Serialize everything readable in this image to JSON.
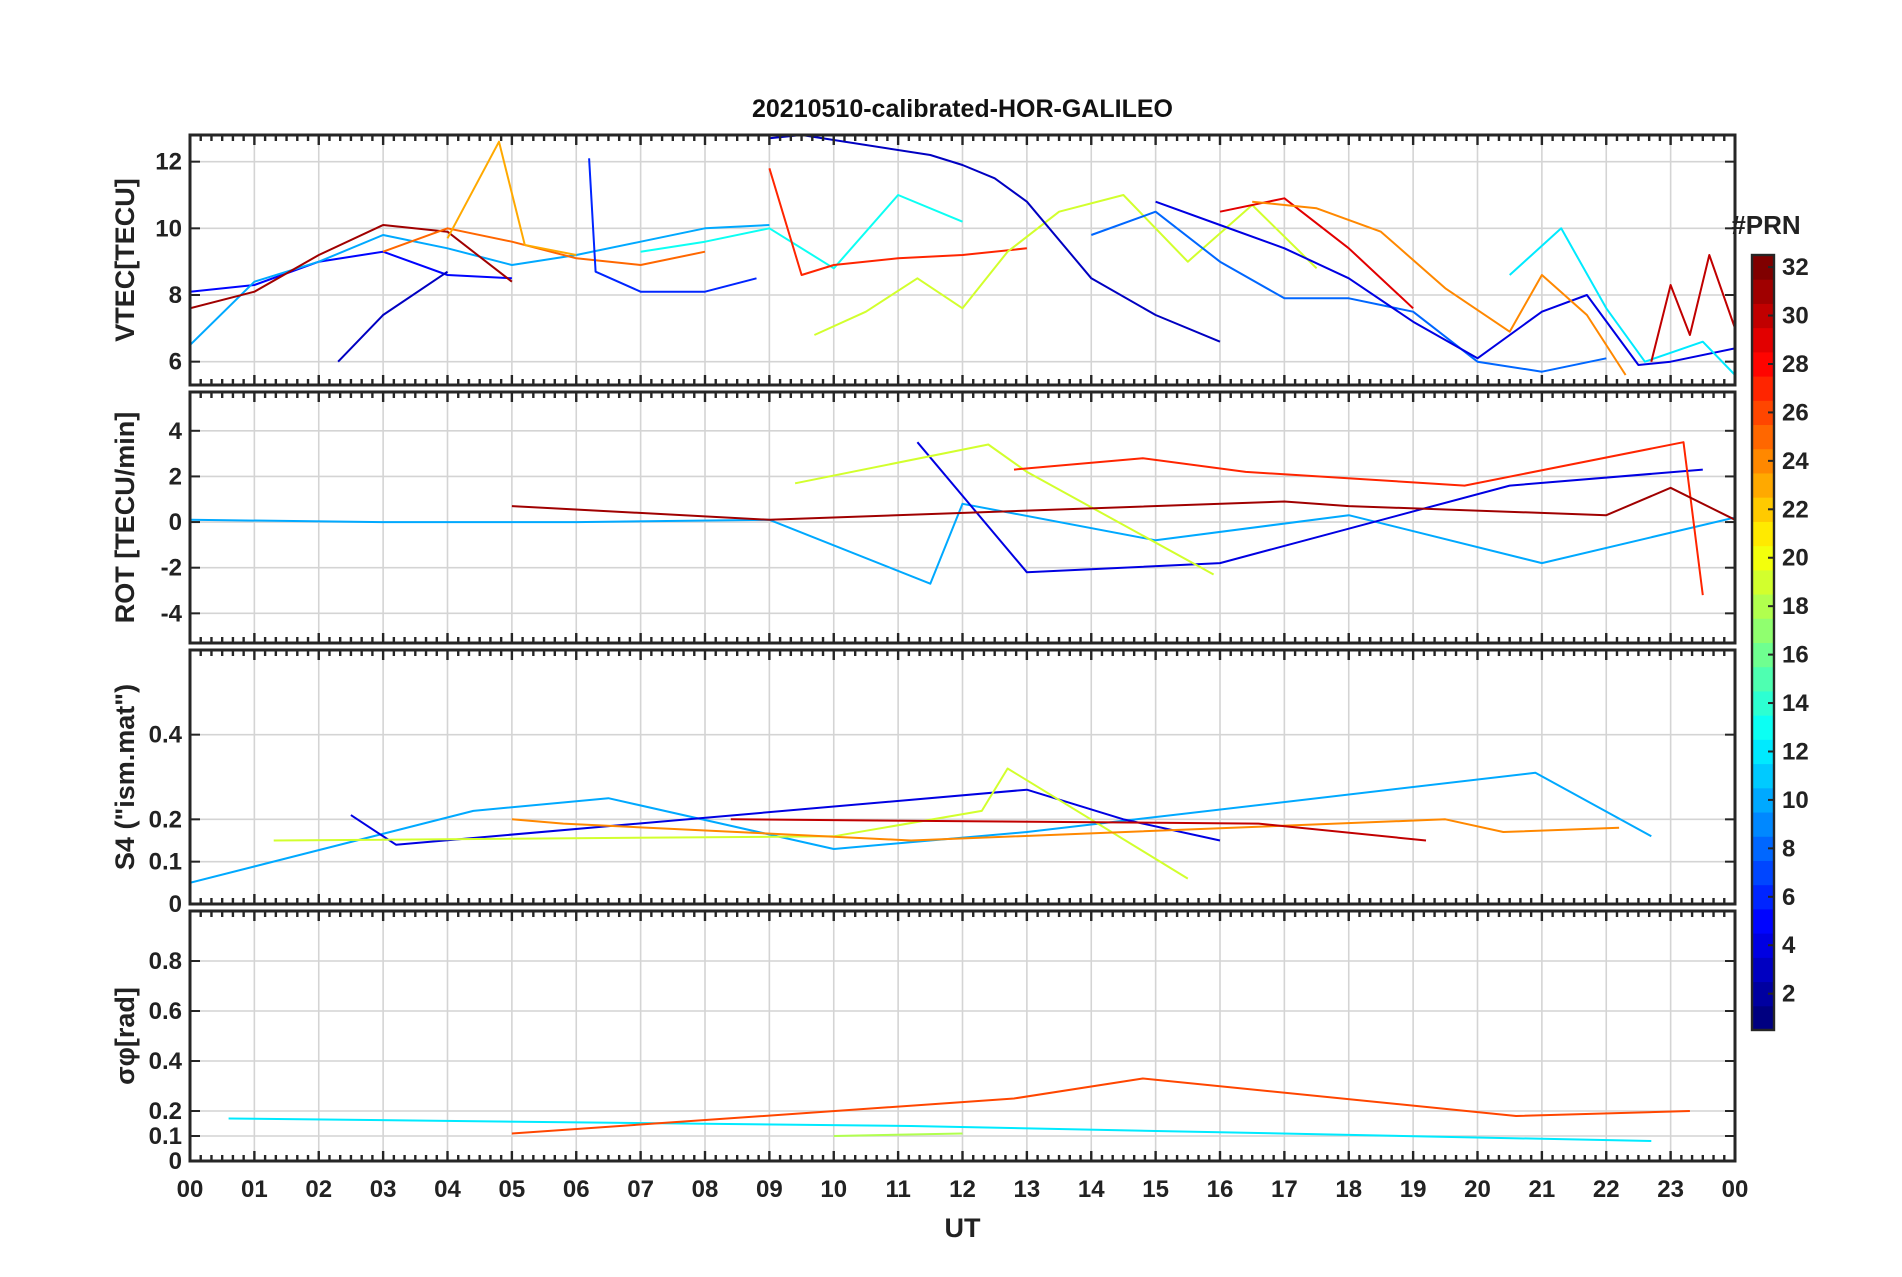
{
  "chart_data": {
    "type": "line",
    "title": "20210510-calibrated-HOR-GALILEO",
    "xlabel": "UT",
    "x_tick_labels": [
      "00",
      "01",
      "02",
      "03",
      "04",
      "05",
      "06",
      "07",
      "08",
      "09",
      "10",
      "11",
      "12",
      "13",
      "14",
      "15",
      "16",
      "17",
      "18",
      "19",
      "20",
      "21",
      "22",
      "23",
      "00"
    ],
    "xlim": [
      0,
      24
    ],
    "colorbar": {
      "label": "#PRN",
      "range": [
        1,
        32
      ],
      "ticks": [
        2,
        4,
        6,
        8,
        10,
        12,
        14,
        16,
        18,
        20,
        22,
        24,
        26,
        28,
        30,
        32
      ],
      "colormap": "jet"
    },
    "panels": [
      {
        "id": "vtec",
        "ylabel": "VTEC[TECU]",
        "ylim": [
          5.3,
          12.8
        ],
        "yticks": [
          6,
          8,
          10,
          12
        ],
        "ytick_labels": [
          "6",
          "8",
          "10",
          "12"
        ],
        "series": [
          {
            "prn": 5,
            "points": [
              [
                0,
                8.1
              ],
              [
                1,
                8.3
              ],
              [
                2,
                9.0
              ],
              [
                3,
                9.3
              ],
              [
                4,
                8.6
              ],
              [
                5,
                8.5
              ]
            ]
          },
          {
            "prn": 10,
            "points": [
              [
                0,
                6.5
              ],
              [
                1,
                8.4
              ],
              [
                2,
                9.0
              ],
              [
                3,
                9.8
              ],
              [
                4,
                9.4
              ],
              [
                5,
                8.9
              ],
              [
                6,
                9.2
              ],
              [
                7,
                9.6
              ],
              [
                8,
                10.0
              ],
              [
                9,
                10.1
              ]
            ]
          },
          {
            "prn": 31,
            "points": [
              [
                0,
                7.6
              ],
              [
                1,
                8.1
              ],
              [
                2,
                9.2
              ],
              [
                3,
                10.1
              ],
              [
                4,
                9.9
              ],
              [
                5,
                8.4
              ]
            ]
          },
          {
            "prn": 25,
            "points": [
              [
                3,
                9.3
              ],
              [
                4,
                10.0
              ],
              [
                5,
                9.6
              ],
              [
                6,
                9.1
              ],
              [
                7,
                8.9
              ],
              [
                8,
                9.3
              ]
            ]
          },
          {
            "prn": 23,
            "points": [
              [
                4,
                9.7
              ],
              [
                4.8,
                12.6
              ],
              [
                5.2,
                9.5
              ],
              [
                6,
                9.2
              ]
            ]
          },
          {
            "prn": 3,
            "points": [
              [
                2.3,
                6.0
              ],
              [
                3,
                7.4
              ],
              [
                4,
                8.7
              ]
            ]
          },
          {
            "prn": 6,
            "points": [
              [
                6.2,
                12.1
              ],
              [
                6.3,
                8.7
              ],
              [
                7,
                8.1
              ],
              [
                8,
                8.1
              ],
              [
                8.8,
                8.5
              ]
            ]
          },
          {
            "prn": 13,
            "points": [
              [
                7,
                9.3
              ],
              [
                8,
                9.6
              ],
              [
                9,
                10.0
              ],
              [
                10,
                8.8
              ],
              [
                11,
                11.0
              ],
              [
                12,
                10.2
              ]
            ]
          },
          {
            "prn": 27,
            "points": [
              [
                9,
                11.8
              ],
              [
                9.5,
                8.6
              ],
              [
                10,
                8.9
              ],
              [
                11,
                9.1
              ],
              [
                12,
                9.2
              ],
              [
                13,
                9.4
              ]
            ]
          },
          {
            "prn": 19,
            "points": [
              [
                9.7,
                6.8
              ],
              [
                10.5,
                7.5
              ],
              [
                11.3,
                8.5
              ],
              [
                12,
                7.6
              ],
              [
                12.7,
                9.3
              ],
              [
                13.5,
                10.5
              ],
              [
                14.5,
                11.0
              ],
              [
                15.5,
                9.0
              ],
              [
                16.5,
                10.7
              ],
              [
                17.5,
                8.8
              ]
            ]
          },
          {
            "prn": 3,
            "points": [
              [
                9,
                12.7
              ],
              [
                9.5,
                12.8
              ],
              [
                11.5,
                12.2
              ],
              [
                12,
                11.9
              ],
              [
                12.5,
                11.5
              ],
              [
                13,
                10.8
              ],
              [
                14,
                8.5
              ],
              [
                15,
                7.4
              ],
              [
                16,
                6.6
              ]
            ]
          },
          {
            "prn": 8,
            "points": [
              [
                14,
                9.8
              ],
              [
                15,
                10.5
              ],
              [
                16,
                9.0
              ],
              [
                17,
                7.9
              ],
              [
                18,
                7.9
              ],
              [
                19,
                7.5
              ],
              [
                20,
                6.0
              ],
              [
                21,
                5.7
              ],
              [
                22,
                6.1
              ]
            ]
          },
          {
            "prn": 4,
            "points": [
              [
                15,
                10.8
              ],
              [
                16,
                10.1
              ],
              [
                17,
                9.4
              ],
              [
                18,
                8.5
              ],
              [
                19,
                7.2
              ],
              [
                20,
                6.1
              ],
              [
                21,
                7.5
              ],
              [
                21.7,
                8.0
              ],
              [
                22.5,
                5.9
              ],
              [
                23,
                6.0
              ],
              [
                24,
                6.4
              ]
            ]
          },
          {
            "prn": 29,
            "points": [
              [
                16,
                10.5
              ],
              [
                17,
                10.9
              ],
              [
                18,
                9.4
              ],
              [
                19,
                7.6
              ]
            ]
          },
          {
            "prn": 24,
            "points": [
              [
                16.5,
                10.8
              ],
              [
                17.5,
                10.6
              ],
              [
                18.5,
                9.9
              ],
              [
                19.5,
                8.2
              ],
              [
                20.5,
                6.9
              ],
              [
                21,
                8.6
              ],
              [
                21.7,
                7.4
              ],
              [
                22.3,
                5.6
              ]
            ]
          },
          {
            "prn": 12,
            "points": [
              [
                20.5,
                8.6
              ],
              [
                21.3,
                10.0
              ],
              [
                22,
                7.6
              ],
              [
                22.6,
                6.0
              ],
              [
                23.5,
                6.6
              ],
              [
                24,
                5.6
              ]
            ]
          },
          {
            "prn": 30,
            "points": [
              [
                22.7,
                6.0
              ],
              [
                23,
                8.3
              ],
              [
                23.3,
                6.8
              ],
              [
                23.6,
                9.2
              ],
              [
                24,
                7.0
              ]
            ]
          }
        ]
      },
      {
        "id": "rot",
        "ylabel": "ROT [TECU/min]",
        "ylim": [
          -5.3,
          5.7
        ],
        "yticks": [
          -4,
          -2,
          0,
          2,
          4
        ],
        "ytick_labels": [
          "-4",
          "-2",
          "0",
          "2",
          "4"
        ],
        "series": [
          {
            "prn": 10,
            "points": [
              [
                0,
                0.1
              ],
              [
                3,
                0.0
              ],
              [
                6,
                0.0
              ],
              [
                9,
                0.1
              ],
              [
                11.5,
                -2.7
              ],
              [
                12,
                0.8
              ],
              [
                15,
                -0.8
              ],
              [
                18,
                0.3
              ],
              [
                21,
                -1.8
              ],
              [
                24,
                0.2
              ]
            ]
          },
          {
            "prn": 4,
            "points": [
              [
                11.3,
                3.5
              ],
              [
                13,
                -2.2
              ],
              [
                16,
                -1.8
              ],
              [
                20.5,
                1.6
              ],
              [
                23.5,
                2.3
              ]
            ]
          },
          {
            "prn": 19,
            "points": [
              [
                9.4,
                1.7
              ],
              [
                12.4,
                3.4
              ],
              [
                13,
                2.2
              ],
              [
                15.9,
                -2.3
              ]
            ]
          },
          {
            "prn": 27,
            "points": [
              [
                12.8,
                2.3
              ],
              [
                14.8,
                2.8
              ],
              [
                16.4,
                2.2
              ],
              [
                19.8,
                1.6
              ],
              [
                23.2,
                3.5
              ],
              [
                23.5,
                -3.2
              ]
            ]
          },
          {
            "prn": 31,
            "points": [
              [
                5,
                0.7
              ],
              [
                9,
                0.1
              ],
              [
                17,
                0.9
              ],
              [
                18,
                0.7
              ],
              [
                22,
                0.3
              ],
              [
                23,
                1.5
              ],
              [
                24,
                0.1
              ]
            ]
          }
        ]
      },
      {
        "id": "s4",
        "ylabel": "S4 (\"ism.mat\")",
        "ylim": [
          0,
          0.6
        ],
        "yticks": [
          0,
          0.1,
          0.2,
          0.4
        ],
        "ytick_labels": [
          "0",
          "0.1",
          "0.2",
          "0.4"
        ],
        "series": [
          {
            "prn": 10,
            "points": [
              [
                0,
                0.05
              ],
              [
                4.4,
                0.22
              ],
              [
                6.5,
                0.25
              ],
              [
                10,
                0.13
              ],
              [
                13,
                0.17
              ],
              [
                20.9,
                0.31
              ],
              [
                22.7,
                0.16
              ]
            ]
          },
          {
            "prn": 4,
            "points": [
              [
                2.5,
                0.21
              ],
              [
                3.2,
                0.14
              ],
              [
                13,
                0.27
              ],
              [
                14.5,
                0.2
              ],
              [
                16,
                0.15
              ]
            ]
          },
          {
            "prn": 19,
            "points": [
              [
                1.3,
                0.15
              ],
              [
                10,
                0.16
              ],
              [
                12.3,
                0.22
              ],
              [
                12.7,
                0.32
              ],
              [
                15.5,
                0.06
              ]
            ]
          },
          {
            "prn": 24,
            "points": [
              [
                5,
                0.2
              ],
              [
                5.8,
                0.19
              ],
              [
                11.2,
                0.15
              ],
              [
                19.5,
                0.2
              ],
              [
                20.4,
                0.17
              ],
              [
                22.2,
                0.18
              ]
            ]
          },
          {
            "prn": 30,
            "points": [
              [
                8.4,
                0.2
              ],
              [
                16.6,
                0.19
              ],
              [
                19.2,
                0.15
              ]
            ]
          }
        ]
      },
      {
        "id": "sigphi",
        "ylabel": "σφ[rad]",
        "ylim": [
          0,
          1.0
        ],
        "yticks": [
          0,
          0.1,
          0.2,
          0.4,
          0.6,
          0.8
        ],
        "ytick_labels": [
          "0",
          "0.1",
          "0.2",
          "0.4",
          "0.6",
          "0.8"
        ],
        "series": [
          {
            "prn": 12,
            "points": [
              [
                0.6,
                0.17
              ],
              [
                11.2,
                0.14
              ],
              [
                22.7,
                0.08
              ]
            ]
          },
          {
            "prn": 26,
            "points": [
              [
                5,
                0.11
              ],
              [
                12.8,
                0.25
              ],
              [
                14.8,
                0.33
              ],
              [
                20.6,
                0.18
              ],
              [
                23.3,
                0.2
              ]
            ]
          },
          {
            "prn": 18,
            "points": [
              [
                10,
                0.1
              ],
              [
                12,
                0.11
              ]
            ]
          }
        ]
      }
    ]
  }
}
